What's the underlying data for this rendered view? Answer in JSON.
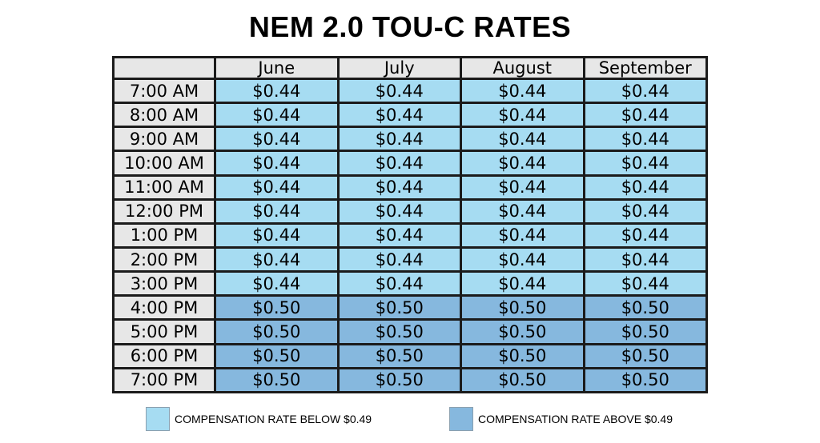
{
  "title": "NEM 2.0 TOU-C RATES",
  "colors": {
    "low": "#a6dcf2",
    "high": "#86b8de"
  },
  "chart_data": {
    "type": "table",
    "columns": [
      "June",
      "July",
      "August",
      "September"
    ],
    "rows": [
      {
        "time": "7:00 AM",
        "values": [
          "$0.44",
          "$0.44",
          "$0.44",
          "$0.44"
        ],
        "level": "low"
      },
      {
        "time": "8:00 AM",
        "values": [
          "$0.44",
          "$0.44",
          "$0.44",
          "$0.44"
        ],
        "level": "low"
      },
      {
        "time": "9:00 AM",
        "values": [
          "$0.44",
          "$0.44",
          "$0.44",
          "$0.44"
        ],
        "level": "low"
      },
      {
        "time": "10:00 AM",
        "values": [
          "$0.44",
          "$0.44",
          "$0.44",
          "$0.44"
        ],
        "level": "low"
      },
      {
        "time": "11:00 AM",
        "values": [
          "$0.44",
          "$0.44",
          "$0.44",
          "$0.44"
        ],
        "level": "low"
      },
      {
        "time": "12:00 PM",
        "values": [
          "$0.44",
          "$0.44",
          "$0.44",
          "$0.44"
        ],
        "level": "low"
      },
      {
        "time": "1:00 PM",
        "values": [
          "$0.44",
          "$0.44",
          "$0.44",
          "$0.44"
        ],
        "level": "low"
      },
      {
        "time": "2:00 PM",
        "values": [
          "$0.44",
          "$0.44",
          "$0.44",
          "$0.44"
        ],
        "level": "low"
      },
      {
        "time": "3:00 PM",
        "values": [
          "$0.44",
          "$0.44",
          "$0.44",
          "$0.44"
        ],
        "level": "low"
      },
      {
        "time": "4:00 PM",
        "values": [
          "$0.50",
          "$0.50",
          "$0.50",
          "$0.50"
        ],
        "level": "high"
      },
      {
        "time": "5:00 PM",
        "values": [
          "$0.50",
          "$0.50",
          "$0.50",
          "$0.50"
        ],
        "level": "high"
      },
      {
        "time": "6:00 PM",
        "values": [
          "$0.50",
          "$0.50",
          "$0.50",
          "$0.50"
        ],
        "level": "high"
      },
      {
        "time": "7:00 PM",
        "values": [
          "$0.50",
          "$0.50",
          "$0.50",
          "$0.50"
        ],
        "level": "high"
      }
    ]
  },
  "legend": {
    "low_label": "COMPENSATION RATE BELOW $0.49",
    "high_label": "COMPENSATION RATE ABOVE $0.49"
  }
}
